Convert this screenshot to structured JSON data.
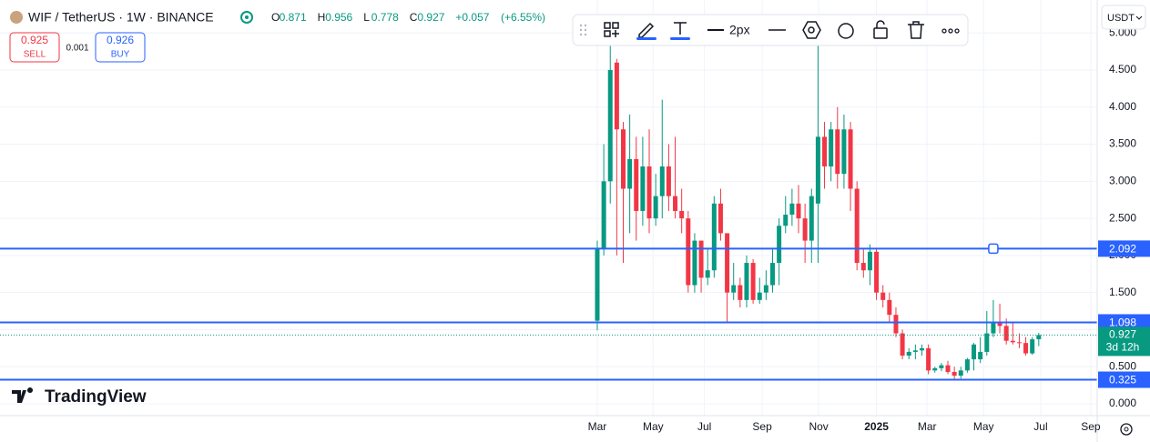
{
  "chart_data": {
    "type": "candlestick",
    "title": "WIF / TetherUS · 1W · BINANCE",
    "ohlc_labels": [
      "O",
      "H",
      "L",
      "C"
    ],
    "change": "+0.057",
    "change_pct": "(+6.55%)",
    "sell_price": "0.925",
    "sell_label": "SELL",
    "spread": "0.001",
    "buy_price": "0.926",
    "buy_label": "BUY",
    "toolbar_width": "2px",
    "currency": "USDT",
    "brand": "TradingView",
    "countdown": "3d 12h",
    "up_color": "#089981",
    "down_color": "#f23645",
    "line_color": "#2962ff",
    "grid": true,
    "open": [
      1.12,
      2.1,
      3.0,
      4.6,
      3.7,
      2.9,
      3.3,
      2.6,
      3.2,
      2.5,
      2.8,
      3.2,
      2.8,
      2.6,
      2.5,
      1.6,
      2.2,
      1.7,
      1.8,
      2.7,
      2.3,
      1.5,
      1.6,
      1.4,
      1.9,
      1.4,
      1.5,
      1.6,
      1.9,
      2.4,
      2.55,
      2.7,
      2.5,
      2.2,
      2.7,
      3.6,
      3.2,
      3.7,
      3.1,
      3.7,
      2.9,
      1.9,
      1.8,
      2.05,
      1.5,
      1.4,
      1.2,
      0.95,
      0.65,
      0.7,
      0.72,
      0.75,
      0.45,
      0.48,
      0.52,
      0.43,
      0.38,
      0.45,
      0.6,
      0.6,
      0.7,
      0.95,
      1.1,
      1.05,
      0.85,
      0.83,
      0.82,
      0.68,
      0.871
    ],
    "high": [
      2.2,
      3.5,
      4.9,
      4.65,
      3.8,
      3.9,
      3.6,
      3.6,
      3.7,
      3.1,
      4.1,
      3.5,
      3.6,
      2.9,
      2.6,
      2.3,
      2.2,
      2.1,
      2.8,
      2.9,
      2.3,
      1.9,
      1.7,
      2.0,
      1.95,
      1.7,
      1.8,
      2.1,
      2.5,
      2.8,
      2.9,
      2.95,
      2.7,
      2.9,
      4.9,
      3.8,
      3.8,
      4.0,
      3.9,
      3.8,
      3.0,
      2.1,
      2.15,
      2.1,
      1.6,
      1.5,
      1.3,
      1.0,
      0.75,
      0.8,
      0.8,
      0.8,
      0.5,
      0.55,
      0.58,
      0.5,
      0.5,
      0.62,
      0.82,
      0.9,
      1.25,
      1.4,
      1.35,
      1.15,
      1.1,
      0.95,
      0.9,
      0.9,
      0.956
    ],
    "low": [
      0.99,
      2.0,
      2.7,
      2.0,
      1.9,
      2.3,
      2.2,
      2.4,
      2.3,
      2.4,
      2.5,
      2.6,
      2.5,
      2.3,
      1.5,
      1.5,
      1.5,
      1.6,
      1.7,
      2.2,
      1.1,
      1.4,
      1.3,
      1.3,
      1.35,
      1.35,
      1.4,
      1.5,
      1.6,
      2.3,
      2.4,
      2.3,
      1.9,
      1.9,
      1.9,
      2.9,
      3.0,
      2.9,
      2.9,
      2.6,
      1.8,
      1.7,
      1.6,
      1.4,
      1.3,
      1.1,
      0.9,
      0.6,
      0.6,
      0.6,
      0.65,
      0.4,
      0.42,
      0.44,
      0.4,
      0.33,
      0.34,
      0.42,
      0.45,
      0.55,
      0.65,
      0.9,
      0.95,
      0.8,
      0.8,
      0.75,
      0.65,
      0.66,
      0.778
    ],
    "close": [
      2.1,
      3.0,
      4.5,
      3.7,
      2.9,
      3.3,
      2.6,
      3.2,
      2.5,
      2.8,
      3.2,
      2.8,
      2.6,
      2.5,
      1.6,
      2.2,
      1.7,
      1.8,
      2.7,
      2.3,
      1.5,
      1.6,
      1.4,
      1.9,
      1.4,
      1.5,
      1.6,
      1.9,
      2.4,
      2.55,
      2.7,
      2.5,
      2.2,
      2.8,
      3.6,
      3.2,
      3.7,
      3.1,
      3.7,
      2.9,
      1.9,
      1.8,
      2.05,
      1.5,
      1.4,
      1.2,
      0.95,
      0.65,
      0.7,
      0.72,
      0.75,
      0.45,
      0.48,
      0.52,
      0.43,
      0.38,
      0.45,
      0.6,
      0.8,
      0.7,
      0.95,
      1.1,
      1.05,
      0.85,
      0.83,
      0.82,
      0.68,
      0.87,
      0.927
    ],
    "hlines": [
      2.092,
      1.098,
      0.325
    ],
    "ylim": [
      -0.159,
      5.444
    ],
    "yticks": [
      {
        "value": 0,
        "label": "0.000"
      },
      {
        "value": 0.5,
        "label": "0.500"
      },
      {
        "value": 1,
        "label": "1.000"
      },
      {
        "value": 1.5,
        "label": "1.500"
      },
      {
        "value": 2,
        "label": "2.000"
      },
      {
        "value": 2.5,
        "label": "2.500"
      },
      {
        "value": 3,
        "label": "3.000"
      },
      {
        "value": 3.5,
        "label": "3.500"
      },
      {
        "value": 4,
        "label": "4.000"
      },
      {
        "value": 4.5,
        "label": "4.500"
      },
      {
        "value": 5,
        "label": "5.000"
      }
    ],
    "xlim": [
      -92,
      77
    ],
    "xticks": [
      {
        "value": 0,
        "label": "Mar"
      },
      {
        "value": 8.6,
        "label": "May"
      },
      {
        "value": 16.5,
        "label": "Jul"
      },
      {
        "value": 25.4,
        "label": "Sep"
      },
      {
        "value": 34.1,
        "label": "Nov"
      },
      {
        "value": 43,
        "label": "2025"
      },
      {
        "value": 50.8,
        "label": "Mar"
      },
      {
        "value": 59.5,
        "label": "May"
      },
      {
        "value": 68.3,
        "label": "Jul"
      },
      {
        "value": 76,
        "label": "Sep"
      }
    ]
  }
}
